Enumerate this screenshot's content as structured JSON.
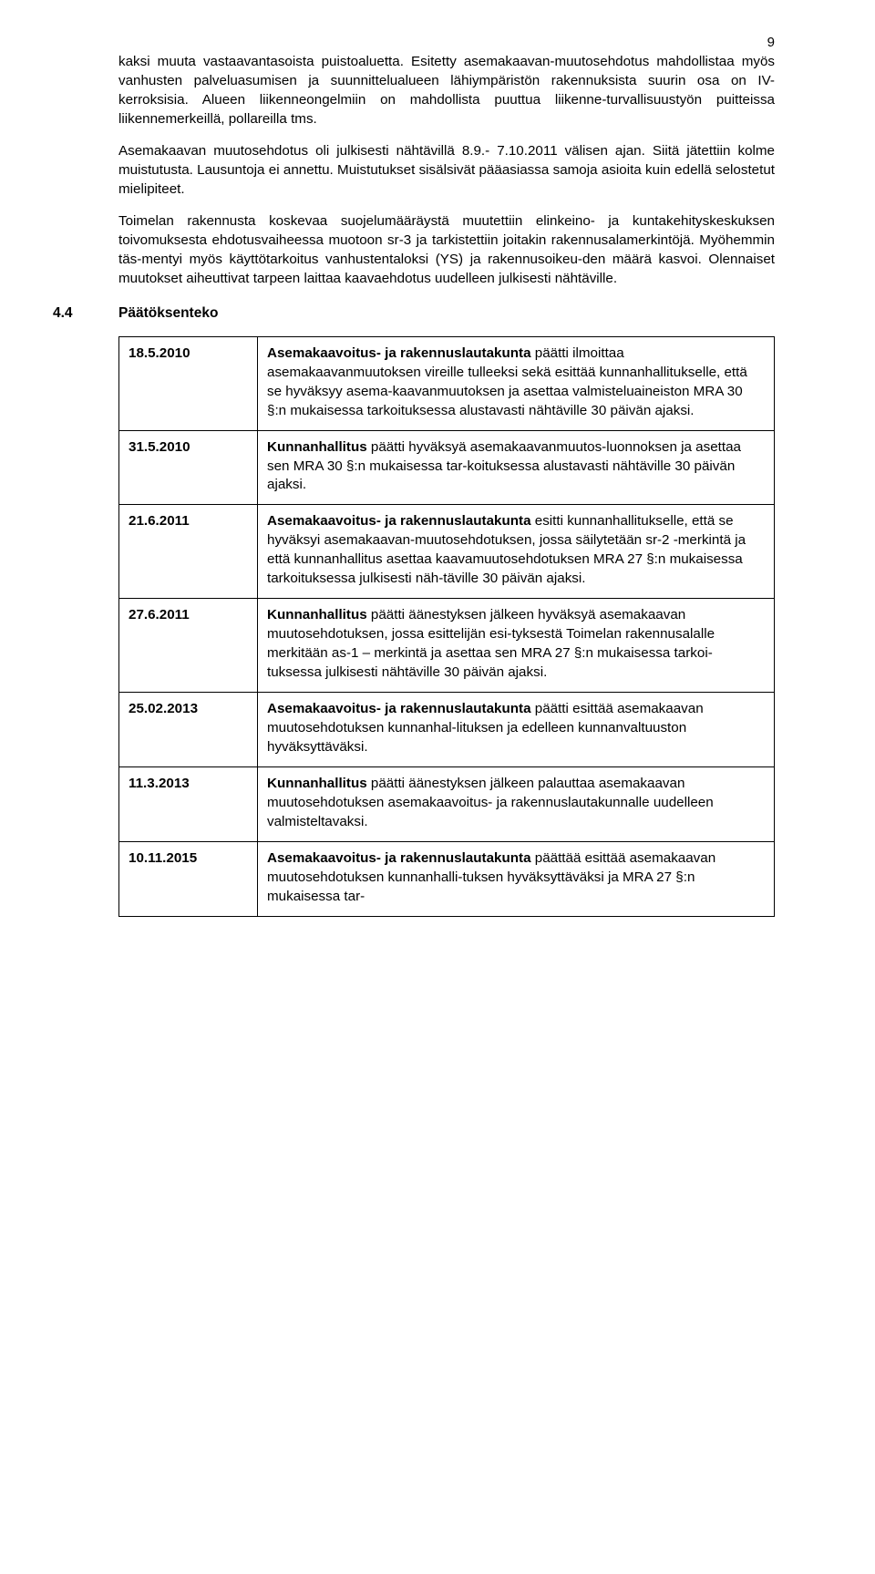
{
  "page_number": "9",
  "paragraphs": {
    "p1": "kaksi muuta vastaavantasoista puistoaluetta. Esitetty asemakaavan-muutosehdotus mahdollistaa myös vanhusten palveluasumisen ja suunnittelualueen lähiympäristön rakennuksista suurin osa on IV-kerroksisia. Alueen liikenneongelmiin on mahdollista puuttua liikenne-turvallisuustyön puitteissa liikennemerkeillä, pollareilla tms.",
    "p2": "Asemakaavan muutosehdotus oli julkisesti nähtävillä 8.9.- 7.10.2011 välisen ajan. Siitä jätettiin kolme muistutusta. Lausuntoja ei annettu. Muistutukset sisälsivät pääasiassa samoja asioita kuin edellä selostetut mielipiteet.",
    "p3": "Toimelan rakennusta koskevaa suojelumääräystä muutettiin elinkeino- ja kuntakehityskeskuksen toivomuksesta ehdotusvaiheessa muotoon sr-3 ja tarkistettiin joitakin rakennusalamerkintöjä. Myöhemmin täs-mentyi myös käyttötarkoitus vanhustentaloksi (YS) ja rakennusoikeu-den määrä kasvoi. Olennaiset muutokset aiheuttivat tarpeen laittaa kaavaehdotus uudelleen julkisesti nähtäville."
  },
  "section": {
    "num": "4.4",
    "title": "Päätöksenteko"
  },
  "decisions": [
    {
      "date": "18.5.2010",
      "bold": "Asemakaavoitus- ja rakennuslautakunta",
      "rest": " päätti ilmoittaa asemakaavanmuutoksen vireille tulleeksi sekä esittää kunnanhallitukselle, että se hyväksyy asema-kaavanmuutoksen ja asettaa valmisteluaineiston MRA 30 §:n mukaisessa tarkoituksessa alustavasti nähtäville 30 päivän ajaksi."
    },
    {
      "date": "31.5.2010",
      "bold": "Kunnanhallitus",
      "rest": " päätti hyväksyä asemakaavanmuutos-luonnoksen ja asettaa sen MRA 30 §:n mukaisessa tar-koituksessa alustavasti nähtäville 30 päivän ajaksi."
    },
    {
      "date": "21.6.2011",
      "bold": "Asemakaavoitus- ja rakennuslautakunta",
      "rest": " esitti kunnanhallitukselle, että se hyväksyi asemakaavan-muutosehdotuksen, jossa säilytetään sr-2 -merkintä ja että kunnanhallitus asettaa kaavamuutosehdotuksen MRA 27 §:n mukaisessa tarkoituksessa julkisesti näh-täville 30 päivän ajaksi."
    },
    {
      "date": "27.6.2011",
      "bold": "Kunnanhallitus",
      "rest": " päätti äänestyksen jälkeen hyväksyä asemakaavan muutosehdotuksen, jossa esittelijän esi-tyksestä Toimelan rakennusalalle merkitään as-1 – merkintä ja asettaa sen MRA 27 §:n mukaisessa tarkoi-tuksessa julkisesti nähtäville 30 päivän ajaksi."
    },
    {
      "date": "25.02.2013",
      "bold": "Asemakaavoitus- ja rakennuslautakunta",
      "rest": " päätti esittää asemakaavan muutosehdotuksen kunnanhal-lituksen ja edelleen kunnanvaltuuston hyväksyttäväksi."
    },
    {
      "date": "11.3.2013",
      "bold": "Kunnanhallitus",
      "rest": " päätti äänestyksen jälkeen palauttaa asemakaavan muutosehdotuksen asemakaavoitus- ja rakennuslautakunnalle uudelleen valmisteltavaksi."
    },
    {
      "date": "10.11.2015",
      "bold": "Asemakaavoitus- ja rakennuslautakunta",
      "rest": " päättää esittää asemakaavan muutosehdotuksen kunnanhalli-tuksen hyväksyttäväksi ja MRA 27 §:n mukaisessa tar-"
    }
  ]
}
